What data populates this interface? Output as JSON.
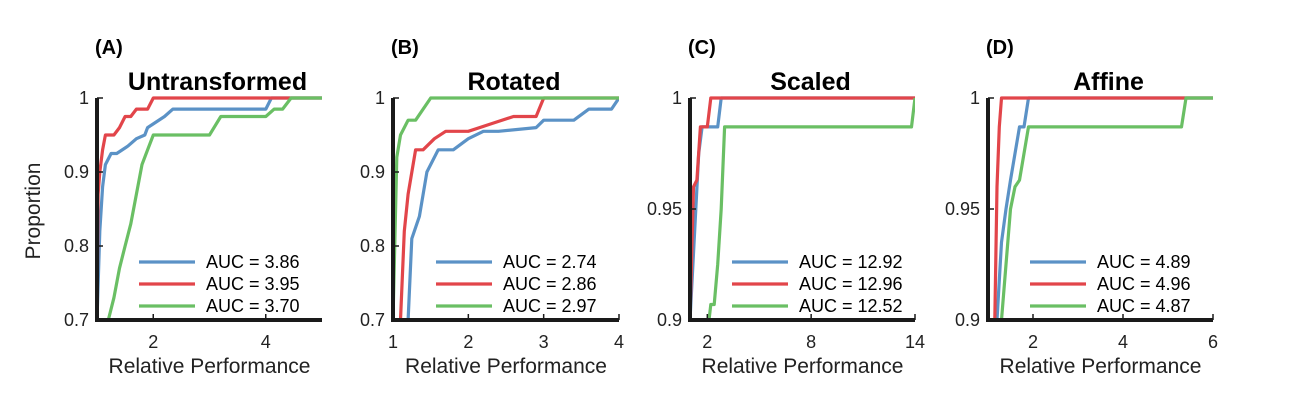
{
  "figure": {
    "ylabel": "Proportion",
    "xlabel": "Relative Performance"
  },
  "chart_data": [
    {
      "type": "line",
      "panel": "(A)",
      "title": "Untransformed",
      "xlabel": "Relative Performance",
      "ylabel": "Proportion",
      "xlim": [
        1,
        5
      ],
      "ylim": [
        0.7,
        1
      ],
      "xticks": [
        2,
        4
      ],
      "xtick_labels": [
        "2",
        "4"
      ],
      "yticks": [
        0.7,
        0.8,
        0.9,
        1
      ],
      "ytick_labels": [
        "0.7",
        "0.8",
        "0.9",
        "1"
      ],
      "legend_position": "bottom-right",
      "colors": [
        "#5b92c6",
        "#e2454a",
        "#6abf64"
      ],
      "series": [
        {
          "name": "AUC = 3.86",
          "color": "#5b92c6",
          "x": [
            1.0,
            1.05,
            1.1,
            1.15,
            1.25,
            1.35,
            1.55,
            1.7,
            1.85,
            1.9,
            2.0,
            2.2,
            2.35,
            2.5,
            3.0,
            3.5,
            4.0,
            4.1,
            5.0
          ],
          "y": [
            0.7,
            0.82,
            0.88,
            0.91,
            0.925,
            0.925,
            0.935,
            0.945,
            0.95,
            0.96,
            0.965,
            0.975,
            0.985,
            0.985,
            0.985,
            0.985,
            0.985,
            1.0,
            1.0
          ]
        },
        {
          "name": "AUC = 3.95",
          "color": "#e2454a",
          "x": [
            1.0,
            1.02,
            1.05,
            1.1,
            1.15,
            1.3,
            1.4,
            1.5,
            1.6,
            1.7,
            1.9,
            2.0,
            3.0,
            4.0,
            5.0
          ],
          "y": [
            0.7,
            0.87,
            0.9,
            0.93,
            0.95,
            0.95,
            0.96,
            0.975,
            0.975,
            0.985,
            0.985,
            1.0,
            1.0,
            1.0,
            1.0
          ]
        },
        {
          "name": "AUC = 3.70",
          "color": "#6abf64",
          "x": [
            1.0,
            1.2,
            1.3,
            1.4,
            1.5,
            1.6,
            1.7,
            1.8,
            1.9,
            2.0,
            3.0,
            3.2,
            4.0,
            4.15,
            4.3,
            4.45,
            5.0
          ],
          "y": [
            0.7,
            0.7,
            0.73,
            0.77,
            0.8,
            0.83,
            0.87,
            0.91,
            0.93,
            0.95,
            0.95,
            0.975,
            0.975,
            0.985,
            0.985,
            1.0,
            1.0
          ]
        }
      ]
    },
    {
      "type": "line",
      "panel": "(B)",
      "title": "Rotated",
      "xlabel": "Relative Performance",
      "ylabel": "",
      "xlim": [
        1,
        4
      ],
      "ylim": [
        0.7,
        1
      ],
      "xticks": [
        1,
        2,
        3,
        4
      ],
      "xtick_labels": [
        "1",
        "2",
        "3",
        "4"
      ],
      "yticks": [
        0.7,
        0.8,
        0.9,
        1
      ],
      "ytick_labels": [
        "0.7",
        "0.8",
        "0.9",
        "1"
      ],
      "legend_position": "bottom-right",
      "colors": [
        "#5b92c6",
        "#e2454a",
        "#6abf64"
      ],
      "series": [
        {
          "name": "AUC = 2.74",
          "color": "#5b92c6",
          "x": [
            1.0,
            1.2,
            1.25,
            1.35,
            1.45,
            1.6,
            1.8,
            2.0,
            2.2,
            2.4,
            2.9,
            3.0,
            3.4,
            3.6,
            3.7,
            3.9,
            4.0
          ],
          "y": [
            0.7,
            0.7,
            0.81,
            0.84,
            0.9,
            0.93,
            0.93,
            0.945,
            0.955,
            0.955,
            0.96,
            0.97,
            0.97,
            0.985,
            0.985,
            0.985,
            1.0
          ]
        },
        {
          "name": "AUC = 2.86",
          "color": "#e2454a",
          "x": [
            1.0,
            1.1,
            1.15,
            1.2,
            1.3,
            1.4,
            1.55,
            1.7,
            2.0,
            2.3,
            2.6,
            2.9,
            3.0,
            4.0
          ],
          "y": [
            0.7,
            0.7,
            0.82,
            0.87,
            0.93,
            0.93,
            0.945,
            0.955,
            0.955,
            0.965,
            0.975,
            0.975,
            1.0,
            1.0
          ]
        },
        {
          "name": "AUC = 2.97",
          "color": "#6abf64",
          "x": [
            1.0,
            1.05,
            1.1,
            1.2,
            1.3,
            1.5,
            2.0,
            3.0,
            4.0
          ],
          "y": [
            0.7,
            0.92,
            0.95,
            0.97,
            0.97,
            1.0,
            1.0,
            1.0,
            1.0
          ]
        }
      ]
    },
    {
      "type": "line",
      "panel": "(C)",
      "title": "Scaled",
      "xlabel": "Relative Performance",
      "ylabel": "",
      "xlim": [
        1,
        14
      ],
      "ylim": [
        0.9,
        1
      ],
      "xticks": [
        2,
        8,
        14
      ],
      "xtick_labels": [
        "2",
        "8",
        "14"
      ],
      "yticks": [
        0.9,
        0.95,
        1
      ],
      "ytick_labels": [
        "0.9",
        "0.95",
        "1"
      ],
      "legend_position": "bottom-right",
      "colors": [
        "#5b92c6",
        "#e2454a",
        "#6abf64"
      ],
      "series": [
        {
          "name": "AUC = 12.92",
          "color": "#5b92c6",
          "x": [
            1.0,
            1.2,
            1.5,
            1.7,
            2.0,
            2.3,
            2.6,
            2.8,
            14.0
          ],
          "y": [
            0.9,
            0.93,
            0.975,
            0.987,
            0.987,
            0.987,
            0.987,
            1.0,
            1.0
          ]
        },
        {
          "name": "AUC = 12.96",
          "color": "#e2454a",
          "x": [
            1.0,
            1.2,
            1.4,
            1.6,
            1.8,
            2.0,
            2.2,
            14.0
          ],
          "y": [
            0.9,
            0.96,
            0.963,
            0.987,
            0.987,
            0.987,
            1.0,
            1.0
          ]
        },
        {
          "name": "AUC = 12.52",
          "color": "#6abf64",
          "x": [
            1.0,
            2.1,
            2.2,
            2.4,
            2.6,
            2.8,
            3.0,
            13.8,
            14.0
          ],
          "y": [
            0.9,
            0.9,
            0.907,
            0.907,
            0.925,
            0.95,
            0.987,
            0.987,
            1.0
          ]
        }
      ]
    },
    {
      "type": "line",
      "panel": "(D)",
      "title": "Affine",
      "xlabel": "Relative Performance",
      "ylabel": "",
      "xlim": [
        1,
        6
      ],
      "ylim": [
        0.9,
        1
      ],
      "xticks": [
        2,
        4,
        6
      ],
      "xtick_labels": [
        "2",
        "4",
        "6"
      ],
      "yticks": [
        0.9,
        0.95,
        1
      ],
      "ytick_labels": [
        "0.9",
        "0.95",
        "1"
      ],
      "legend_position": "bottom-right",
      "colors": [
        "#5b92c6",
        "#e2454a",
        "#6abf64"
      ],
      "series": [
        {
          "name": "AUC = 4.89",
          "color": "#5b92c6",
          "x": [
            1.0,
            1.2,
            1.3,
            1.4,
            1.5,
            1.6,
            1.7,
            1.8,
            1.9,
            2.0,
            6.0
          ],
          "y": [
            0.9,
            0.9,
            0.935,
            0.95,
            0.963,
            0.975,
            0.987,
            0.987,
            1.0,
            1.0,
            1.0
          ]
        },
        {
          "name": "AUC = 4.96",
          "color": "#e2454a",
          "x": [
            1.0,
            1.15,
            1.2,
            1.25,
            1.3,
            6.0
          ],
          "y": [
            0.9,
            0.9,
            0.96,
            0.987,
            1.0,
            1.0
          ]
        },
        {
          "name": "AUC = 4.87",
          "color": "#6abf64",
          "x": [
            1.0,
            1.3,
            1.4,
            1.5,
            1.6,
            1.7,
            1.8,
            1.9,
            5.3,
            5.4,
            6.0
          ],
          "y": [
            0.9,
            0.9,
            0.925,
            0.95,
            0.96,
            0.963,
            0.975,
            0.987,
            0.987,
            1.0,
            1.0
          ]
        }
      ]
    }
  ]
}
